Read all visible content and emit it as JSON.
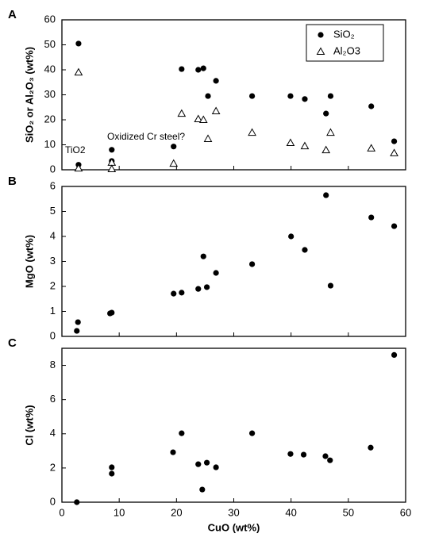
{
  "chart_data": [
    {
      "type": "scatter",
      "panel_label": "A",
      "ylabel": "SiO₂ or Al₂O₃ (wt%)",
      "xlim": [
        0,
        60
      ],
      "ylim": [
        0,
        60
      ],
      "yticks": [
        0,
        10,
        20,
        30,
        40,
        50,
        60
      ],
      "legend": "top right",
      "annotations": [
        "TiO2",
        "Oxidized Cr steel?"
      ],
      "series": [
        {
          "name": "SiO₂",
          "marker": "circle",
          "color": "#000000",
          "x": [
            2.9,
            2.9,
            8.7,
            8.7,
            19.5,
            20.9,
            23.8,
            24.7,
            25.5,
            26.9,
            33.2,
            39.9,
            42.4,
            46.1,
            46.9,
            54.0,
            58.0
          ],
          "values": [
            50.5,
            2.0,
            8.0,
            3.5,
            9.3,
            40.3,
            40.0,
            40.6,
            29.5,
            35.6,
            29.5,
            29.5,
            28.3,
            22.5,
            29.5,
            25.4,
            11.4
          ]
        },
        {
          "name": "Al₂O3",
          "marker": "triangle",
          "color": "#000000",
          "x": [
            2.9,
            2.9,
            8.7,
            8.7,
            19.5,
            20.9,
            23.8,
            24.7,
            25.5,
            26.9,
            33.2,
            39.9,
            42.4,
            46.1,
            46.9,
            54.0,
            58.0
          ],
          "values": [
            39.0,
            0.6,
            2.9,
            0.3,
            2.5,
            22.5,
            20.3,
            20.0,
            12.4,
            23.5,
            14.9,
            10.8,
            9.5,
            7.9,
            14.9,
            8.6,
            6.7
          ]
        }
      ]
    },
    {
      "type": "scatter",
      "panel_label": "B",
      "ylabel": "MgO (wt%)",
      "xlim": [
        0,
        60
      ],
      "ylim": [
        0,
        6
      ],
      "yticks": [
        0,
        1,
        2,
        3,
        4,
        5,
        6
      ],
      "series": [
        {
          "marker": "circle",
          "color": "#000000",
          "x": [
            2.6,
            2.8,
            8.4,
            8.7,
            19.5,
            20.9,
            23.8,
            24.7,
            25.3,
            26.9,
            33.2,
            40.0,
            42.4,
            46.1,
            46.9,
            54.0,
            58.0
          ],
          "values": [
            0.22,
            0.57,
            0.92,
            0.95,
            1.71,
            1.75,
            1.9,
            3.2,
            1.97,
            2.54,
            2.89,
            4.0,
            3.46,
            5.65,
            2.03,
            4.76,
            4.41
          ]
        }
      ]
    },
    {
      "type": "scatter",
      "panel_label": "C",
      "ylabel": "Cl (wt%)",
      "xlabel": "CuO (wt%)",
      "xlim": [
        0,
        60
      ],
      "xticks": [
        0,
        10,
        20,
        30,
        40,
        50,
        60
      ],
      "ylim": [
        0,
        9
      ],
      "yticks": [
        0,
        2,
        4,
        6,
        8
      ],
      "series": [
        {
          "marker": "circle",
          "color": "#000000",
          "x": [
            2.6,
            8.7,
            8.7,
            19.4,
            20.9,
            23.8,
            24.5,
            25.3,
            26.9,
            33.2,
            39.9,
            42.2,
            46.0,
            46.8,
            53.9,
            58.0
          ],
          "values": [
            0,
            1.67,
            2.04,
            2.92,
            4.03,
            2.22,
            0.74,
            2.31,
            2.04,
            4.03,
            2.82,
            2.78,
            2.69,
            2.45,
            3.19,
            8.61
          ]
        }
      ]
    }
  ]
}
